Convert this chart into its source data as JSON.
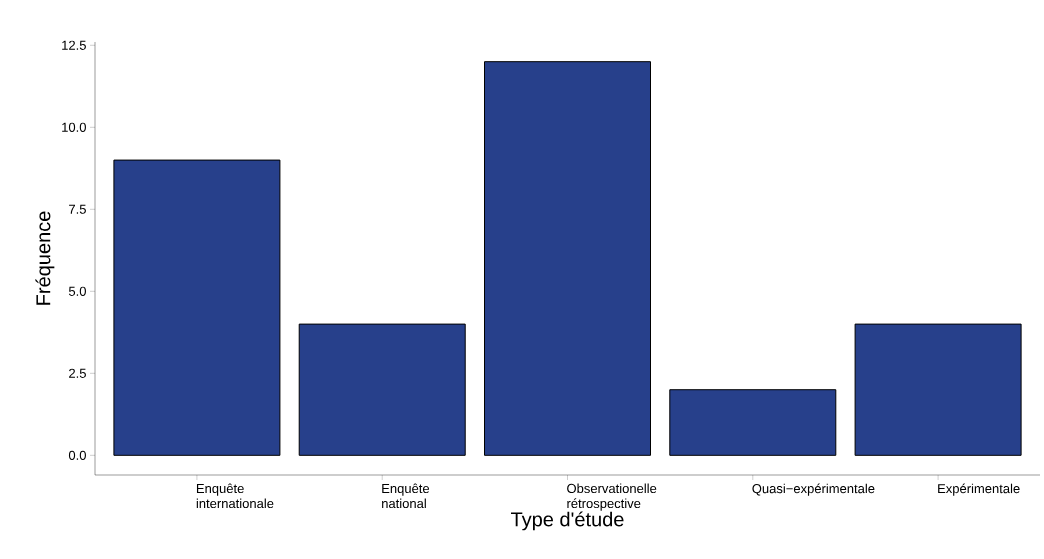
{
  "chart_data": {
    "type": "bar",
    "xlabel": "Type d'étude",
    "ylabel": "Fréquence",
    "categories": [
      "Enquête internationale",
      "Enquête national",
      "Observationelle rétrospective",
      "Quasi−expérimentale",
      "Expérimentale"
    ],
    "values": [
      9,
      4,
      12,
      2,
      4
    ],
    "color": "#27408b",
    "ylim": [
      -0.6,
      12.6
    ],
    "yticks": [
      {
        "value": 0,
        "label": "0.0"
      },
      {
        "value": 2.5,
        "label": "2.5"
      },
      {
        "value": 5,
        "label": "5.0"
      },
      {
        "value": 7.5,
        "label": "7.5"
      },
      {
        "value": 10,
        "label": "10.0"
      },
      {
        "value": 12.5,
        "label": "12.5"
      }
    ],
    "grid": false
  }
}
